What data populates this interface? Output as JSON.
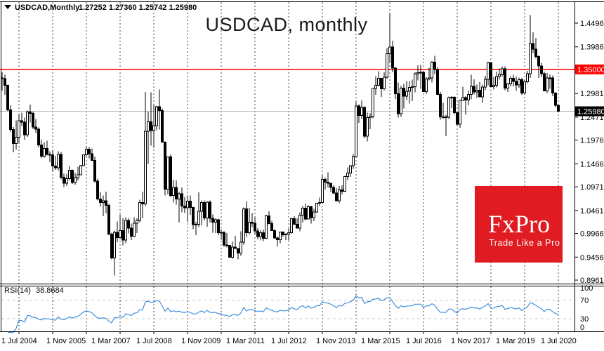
{
  "header": {
    "dropdown_icon": "symbol-dropdown",
    "symbol": "USDCAD,Monthly",
    "open": "1.27252",
    "high": "1.27360",
    "low": "1.25742",
    "close": "1.25980"
  },
  "title": "USDCAD, monthly",
  "logo": {
    "name": "FxPro",
    "tagline": "Trade Like a Pro"
  },
  "colors": {
    "level_line": "#ff0000",
    "current_line": "#b9b9b9",
    "grid": "#444444",
    "candle": "#000000",
    "bull_fill": "#ffffff",
    "bear_fill": "#000000",
    "rsi_line": "#3f8fdd",
    "rsi_level_dash": "#c8c8c8",
    "level_badge_bg": "#ff0000",
    "current_badge_bg": "#000000",
    "logo_bg": "#e11b22"
  },
  "price_axis": {
    "ticks": [
      {
        "label": "1.44960",
        "price": 1.4496
      },
      {
        "label": "1.39860",
        "price": 1.3986
      },
      {
        "label": "1.29810",
        "price": 1.2981
      },
      {
        "label": "1.24710",
        "price": 1.2471
      },
      {
        "label": "1.19760",
        "price": 1.1976
      },
      {
        "label": "1.14660",
        "price": 1.1466
      },
      {
        "label": "1.09710",
        "price": 1.0971
      },
      {
        "label": "1.04610",
        "price": 1.0461
      },
      {
        "label": "0.99660",
        "price": 0.9966
      },
      {
        "label": "0.94560",
        "price": 0.9456
      },
      {
        "label": "0.89610",
        "price": 0.8961
      }
    ],
    "level_badge": {
      "label": "1.35000",
      "price": 1.35
    },
    "current_badge": {
      "label": "1.25980",
      "price": 1.2598
    }
  },
  "time_axis": {
    "labels": [
      {
        "text": "1 Jul 2004",
        "month": 0
      },
      {
        "text": "1 Nov 2005",
        "month": 16
      },
      {
        "text": "1 Mar 2007",
        "month": 32
      },
      {
        "text": "1 Jul 2008",
        "month": 48
      },
      {
        "text": "1 Nov 2009",
        "month": 64
      },
      {
        "text": "1 Mar 2011",
        "month": 80
      },
      {
        "text": "1 Jul 2012",
        "month": 96
      },
      {
        "text": "1 Nov 2013",
        "month": 112
      },
      {
        "text": "1 Mar 2015",
        "month": 128
      },
      {
        "text": "1 Jul 2016",
        "month": 144
      },
      {
        "text": "1 Nov 2017",
        "month": 160
      },
      {
        "text": "1 Mar 2019",
        "month": 176
      },
      {
        "text": "1 Jul 2020",
        "month": 192
      }
    ]
  },
  "rsi": {
    "name": "RSI(14)",
    "period": 14,
    "value": "38.8684",
    "levels": [
      70,
      30
    ],
    "scale": [
      {
        "label": "100",
        "value": 100
      },
      {
        "label": "70",
        "value": 70
      },
      {
        "label": "30",
        "value": 30
      },
      {
        "label": "0",
        "value": 0
      }
    ]
  },
  "chart_data": {
    "type": "candlestick",
    "symbol": "USDCAD",
    "timeframe": "monthly",
    "start": "2004-07",
    "interval_months": 1,
    "level_line": 1.35,
    "current_price": 1.2598,
    "ylim": [
      0.8961,
      1.4496
    ],
    "grid": "vertical-annual-dashed",
    "ohlc": [
      [
        1.332,
        1.3435,
        1.3045,
        1.33
      ],
      [
        1.33,
        1.3385,
        1.2955,
        1.316
      ],
      [
        1.316,
        1.3175,
        1.2595,
        1.263
      ],
      [
        1.263,
        1.2725,
        1.2155,
        1.2205
      ],
      [
        1.2205,
        1.226,
        1.1715,
        1.19
      ],
      [
        1.19,
        1.2405,
        1.1775,
        1.2035
      ],
      [
        1.2035,
        1.2545,
        1.1925,
        1.2395
      ],
      [
        1.2395,
        1.2565,
        1.228,
        1.2365
      ],
      [
        1.2365,
        1.2465,
        1.1985,
        1.2095
      ],
      [
        1.2095,
        1.2615,
        1.205,
        1.258
      ],
      [
        1.258,
        1.274,
        1.236,
        1.255
      ],
      [
        1.255,
        1.259,
        1.221,
        1.226
      ],
      [
        1.226,
        1.243,
        1.213,
        1.2215
      ],
      [
        1.2215,
        1.225,
        1.182,
        1.187
      ],
      [
        1.187,
        1.1985,
        1.159,
        1.163
      ],
      [
        1.163,
        1.193,
        1.16,
        1.18
      ],
      [
        1.18,
        1.1965,
        1.1645,
        1.167
      ],
      [
        1.167,
        1.174,
        1.1505,
        1.166
      ],
      [
        1.166,
        1.175,
        1.1295,
        1.142
      ],
      [
        1.142,
        1.1635,
        1.1335,
        1.138
      ],
      [
        1.138,
        1.174,
        1.132,
        1.167
      ],
      [
        1.167,
        1.172,
        1.1135,
        1.118
      ],
      [
        1.118,
        1.125,
        1.0965,
        1.105
      ],
      [
        1.105,
        1.125,
        1.0985,
        1.115
      ],
      [
        1.115,
        1.142,
        1.1105,
        1.133
      ],
      [
        1.133,
        1.1345,
        1.1035,
        1.106
      ],
      [
        1.106,
        1.1275,
        1.102,
        1.117
      ],
      [
        1.117,
        1.1405,
        1.111,
        1.123
      ],
      [
        1.123,
        1.1445,
        1.1225,
        1.143
      ],
      [
        1.143,
        1.1665,
        1.1415,
        1.166
      ],
      [
        1.166,
        1.1845,
        1.163,
        1.178
      ],
      [
        1.178,
        1.1828,
        1.1585,
        1.168
      ],
      [
        1.168,
        1.1795,
        1.153,
        1.154
      ],
      [
        1.154,
        1.1625,
        1.1065,
        1.109
      ],
      [
        1.109,
        1.1145,
        1.0675,
        1.071
      ],
      [
        1.071,
        1.0855,
        1.0545,
        1.063
      ],
      [
        1.063,
        1.0785,
        1.034,
        1.067
      ],
      [
        1.067,
        1.0865,
        1.04,
        1.057
      ],
      [
        1.057,
        1.06,
        0.993,
        0.995
      ],
      [
        0.995,
        0.9985,
        0.9405,
        0.944
      ],
      [
        0.944,
        1.0025,
        0.9058,
        0.999
      ],
      [
        0.999,
        1.0225,
        0.9775,
        0.988
      ],
      [
        0.988,
        1.0375,
        0.9845,
        1.003
      ],
      [
        1.003,
        1.029,
        0.971,
        0.982
      ],
      [
        0.982,
        1.0315,
        0.9755,
        1.025
      ],
      [
        1.025,
        1.0295,
        0.997,
        1.008
      ],
      [
        1.008,
        1.0175,
        0.982,
        0.991
      ],
      [
        0.991,
        1.0315,
        0.9895,
        1.019
      ],
      [
        1.019,
        1.0295,
        0.9975,
        1.025
      ],
      [
        1.025,
        1.069,
        1.021,
        1.063
      ],
      [
        1.063,
        1.0865,
        1.029,
        1.0605
      ],
      [
        1.0605,
        1.3015,
        1.056,
        1.217
      ],
      [
        1.217,
        1.259,
        1.1465,
        1.237
      ],
      [
        1.237,
        1.3005,
        1.1855,
        1.218
      ],
      [
        1.218,
        1.273,
        1.1815,
        1.229
      ],
      [
        1.229,
        1.2715,
        1.219,
        1.27
      ],
      [
        1.27,
        1.3065,
        1.2205,
        1.2615
      ],
      [
        1.2615,
        1.2655,
        1.1925,
        1.193
      ],
      [
        1.193,
        1.195,
        1.0785,
        1.092
      ],
      [
        1.092,
        1.1625,
        1.0805,
        1.1615
      ],
      [
        1.1615,
        1.167,
        1.0745,
        1.078
      ],
      [
        1.078,
        1.1125,
        1.0635,
        1.096
      ],
      [
        1.096,
        1.1105,
        1.059,
        1.071
      ],
      [
        1.071,
        1.087,
        1.0205,
        1.082
      ],
      [
        1.082,
        1.096,
        1.042,
        1.056
      ],
      [
        1.056,
        1.075,
        1.0405,
        1.052
      ],
      [
        1.052,
        1.078,
        1.022,
        1.066
      ],
      [
        1.066,
        1.078,
        1.037,
        1.0525
      ],
      [
        1.0525,
        1.054,
        1.006,
        1.0155
      ],
      [
        1.0155,
        1.022,
        0.993,
        1.016
      ],
      [
        1.016,
        1.085,
        1.0105,
        1.044
      ],
      [
        1.044,
        1.068,
        1.014,
        1.063
      ],
      [
        1.063,
        1.0675,
        1.025,
        1.03
      ],
      [
        1.03,
        1.0665,
        1.011,
        1.064
      ],
      [
        1.064,
        1.068,
        1.02,
        1.029
      ],
      [
        1.029,
        1.0375,
        0.998,
        1.021
      ],
      [
        1.021,
        1.029,
        0.9975,
        1.0265
      ],
      [
        1.0265,
        1.0285,
        0.993,
        0.9985
      ],
      [
        0.9985,
        1.006,
        0.983,
        0.999
      ],
      [
        0.999,
        1.001,
        0.968,
        0.972
      ],
      [
        0.972,
        0.9975,
        0.9665,
        0.971
      ],
      [
        0.971,
        0.972,
        0.9445,
        0.945
      ],
      [
        0.945,
        0.9795,
        0.9425,
        0.967
      ],
      [
        0.967,
        0.9915,
        0.964,
        0.9645
      ],
      [
        0.9645,
        0.965,
        0.9405,
        0.9545
      ],
      [
        0.9545,
        1.001,
        0.948,
        0.978
      ],
      [
        0.978,
        1.0525,
        0.9725,
        1.05
      ],
      [
        1.05,
        1.0655,
        0.989,
        0.998
      ],
      [
        0.998,
        1.052,
        0.9935,
        1.021
      ],
      [
        1.021,
        1.0405,
        1.0105,
        1.019
      ],
      [
        1.019,
        1.032,
        0.996,
        1.002
      ],
      [
        1.002,
        1.008,
        0.984,
        0.99
      ],
      [
        0.99,
        1.0035,
        0.9815,
        0.998
      ],
      [
        0.998,
        1.005,
        0.98,
        0.986
      ],
      [
        0.986,
        1.0365,
        0.9845,
        1.0345
      ],
      [
        1.0345,
        1.0445,
        1.016,
        1.018
      ],
      [
        1.018,
        1.024,
        1.002,
        1.003
      ],
      [
        1.003,
        1.006,
        0.9845,
        0.9865
      ],
      [
        0.9865,
        0.99,
        0.9685,
        0.983
      ],
      [
        0.983,
        1.0005,
        0.9755,
        0.9995
      ],
      [
        0.9995,
        1.0015,
        0.99,
        0.9935
      ],
      [
        0.9935,
        0.997,
        0.982,
        0.995
      ],
      [
        0.995,
        1.0075,
        0.9815,
        0.9985
      ],
      [
        0.9985,
        1.0305,
        0.996,
        1.0285
      ],
      [
        1.0285,
        1.034,
        1.0155,
        1.016
      ],
      [
        1.016,
        1.0295,
        1.007,
        1.008
      ],
      [
        1.008,
        1.042,
        1.0015,
        1.036
      ],
      [
        1.036,
        1.056,
        1.0205,
        1.0515
      ],
      [
        1.0515,
        1.061,
        1.025,
        1.028
      ],
      [
        1.028,
        1.057,
        1.027,
        1.054
      ],
      [
        1.054,
        1.0565,
        1.018,
        1.031
      ],
      [
        1.031,
        1.05,
        1.0235,
        1.0425
      ],
      [
        1.0425,
        1.0605,
        1.0415,
        1.062
      ],
      [
        1.062,
        1.074,
        1.056,
        1.0635
      ],
      [
        1.0635,
        1.1225,
        1.062,
        1.1135
      ],
      [
        1.1135,
        1.117,
        1.091,
        1.107
      ],
      [
        1.107,
        1.128,
        1.0955,
        1.105
      ],
      [
        1.105,
        1.1055,
        1.086,
        1.096
      ],
      [
        1.096,
        1.1005,
        1.0815,
        1.084
      ],
      [
        1.084,
        1.0945,
        1.0655,
        1.067
      ],
      [
        1.067,
        1.0985,
        1.062,
        1.0905
      ],
      [
        1.0905,
        1.1,
        1.081,
        1.0875
      ],
      [
        1.0875,
        1.121,
        1.086,
        1.1195
      ],
      [
        1.1195,
        1.1385,
        1.112,
        1.127
      ],
      [
        1.127,
        1.1435,
        1.1185,
        1.1425
      ],
      [
        1.1425,
        1.1675,
        1.1355,
        1.162
      ],
      [
        1.162,
        1.28,
        1.162,
        1.2715
      ],
      [
        1.2715,
        1.275,
        1.235,
        1.2505
      ],
      [
        1.2505,
        1.2835,
        1.243,
        1.2685
      ],
      [
        1.2685,
        1.2705,
        1.2015,
        1.206
      ],
      [
        1.206,
        1.2565,
        1.195,
        1.246
      ],
      [
        1.246,
        1.256,
        1.221,
        1.249
      ],
      [
        1.249,
        1.31,
        1.245,
        1.309
      ],
      [
        1.309,
        1.3355,
        1.2955,
        1.3155
      ],
      [
        1.3155,
        1.346,
        1.3135,
        1.331
      ],
      [
        1.331,
        1.332,
        1.2905,
        1.308
      ],
      [
        1.308,
        1.3435,
        1.3045,
        1.3335
      ],
      [
        1.3335,
        1.396,
        1.3305,
        1.384
      ],
      [
        1.384,
        1.469,
        1.364,
        1.398
      ],
      [
        1.398,
        1.412,
        1.344,
        1.3525
      ],
      [
        1.3525,
        1.355,
        1.286,
        1.2975
      ],
      [
        1.2975,
        1.322,
        1.246,
        1.2545
      ],
      [
        1.2545,
        1.3145,
        1.248,
        1.31
      ],
      [
        1.31,
        1.319,
        1.2655,
        1.2925
      ],
      [
        1.2925,
        1.325,
        1.284,
        1.303
      ],
      [
        1.303,
        1.3245,
        1.2765,
        1.311
      ],
      [
        1.311,
        1.328,
        1.282,
        1.313
      ],
      [
        1.313,
        1.3435,
        1.3005,
        1.341
      ],
      [
        1.341,
        1.359,
        1.326,
        1.343
      ],
      [
        1.343,
        1.36,
        1.3085,
        1.3435
      ],
      [
        1.3435,
        1.3465,
        1.302,
        1.3025
      ],
      [
        1.3025,
        1.333,
        1.297,
        1.3295
      ],
      [
        1.3295,
        1.3535,
        1.326,
        1.332
      ],
      [
        1.332,
        1.368,
        1.322,
        1.3655
      ],
      [
        1.3655,
        1.3795,
        1.34,
        1.35
      ],
      [
        1.35,
        1.354,
        1.2945,
        1.296
      ],
      [
        1.296,
        1.3015,
        1.2415,
        1.2475
      ],
      [
        1.2475,
        1.278,
        1.244,
        1.2475
      ],
      [
        1.2475,
        1.252,
        1.206,
        1.247
      ],
      [
        1.247,
        1.2915,
        1.2435,
        1.2895
      ],
      [
        1.2895,
        1.292,
        1.267,
        1.29
      ],
      [
        1.29,
        1.292,
        1.253,
        1.257
      ],
      [
        1.257,
        1.259,
        1.2285,
        1.2315
      ],
      [
        1.2315,
        1.284,
        1.2245,
        1.283
      ],
      [
        1.283,
        1.3125,
        1.283,
        1.2895
      ],
      [
        1.2895,
        1.292,
        1.2525,
        1.284
      ],
      [
        1.284,
        1.3045,
        1.273,
        1.296
      ],
      [
        1.296,
        1.3385,
        1.2855,
        1.3135
      ],
      [
        1.3135,
        1.329,
        1.296,
        1.3015
      ],
      [
        1.3015,
        1.3175,
        1.2885,
        1.305
      ],
      [
        1.305,
        1.3225,
        1.29,
        1.291
      ],
      [
        1.291,
        1.317,
        1.278,
        1.312
      ],
      [
        1.312,
        1.336,
        1.305,
        1.329
      ],
      [
        1.329,
        1.3665,
        1.316,
        1.364
      ],
      [
        1.364,
        1.366,
        1.312,
        1.313
      ],
      [
        1.313,
        1.334,
        1.3065,
        1.316
      ],
      [
        1.316,
        1.345,
        1.3115,
        1.335
      ],
      [
        1.335,
        1.352,
        1.328,
        1.339
      ],
      [
        1.339,
        1.3565,
        1.3355,
        1.351
      ],
      [
        1.351,
        1.3565,
        1.3055,
        1.3095
      ],
      [
        1.3095,
        1.32,
        1.3015,
        1.319
      ],
      [
        1.319,
        1.3345,
        1.3135,
        1.331
      ],
      [
        1.331,
        1.3385,
        1.3135,
        1.324
      ],
      [
        1.324,
        1.3345,
        1.3045,
        1.3165
      ],
      [
        1.3165,
        1.3325,
        1.3105,
        1.328
      ],
      [
        1.328,
        1.332,
        1.295,
        1.299
      ],
      [
        1.299,
        1.326,
        1.2955,
        1.323
      ],
      [
        1.323,
        1.3465,
        1.3205,
        1.3405
      ],
      [
        1.3405,
        1.4668,
        1.3315,
        1.406
      ],
      [
        1.406,
        1.43,
        1.385,
        1.394
      ],
      [
        1.394,
        1.4175,
        1.373,
        1.378
      ],
      [
        1.378,
        1.38,
        1.3315,
        1.3575
      ],
      [
        1.3575,
        1.3645,
        1.333,
        1.341
      ],
      [
        1.341,
        1.345,
        1.3035,
        1.304
      ],
      [
        1.304,
        1.342,
        1.2995,
        1.332
      ],
      [
        1.332,
        1.339,
        1.308,
        1.332
      ],
      [
        1.332,
        1.337,
        1.2925,
        1.2995
      ],
      [
        1.2995,
        1.301,
        1.2685,
        1.2725
      ],
      [
        1.27252,
        1.2736,
        1.25742,
        1.2598
      ]
    ]
  }
}
